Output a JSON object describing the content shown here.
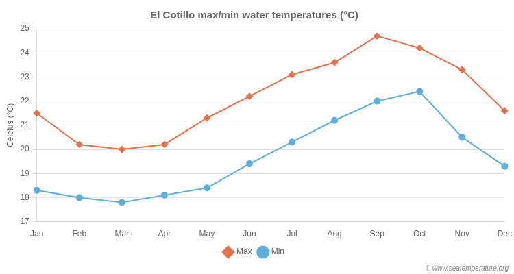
{
  "chart_data": {
    "type": "line",
    "title": "El Cotillo max/min water temperatures (°C)",
    "y_label": "Celcius (°C)",
    "categories": [
      "Jan",
      "Feb",
      "Mar",
      "Apr",
      "May",
      "Jun",
      "Jul",
      "Aug",
      "Sep",
      "Oct",
      "Nov",
      "Dec"
    ],
    "series": [
      {
        "name": "Max",
        "color": "#e8714a",
        "marker": "diamond",
        "values": [
          21.5,
          20.2,
          20.0,
          20.2,
          21.3,
          22.2,
          23.1,
          23.6,
          24.7,
          24.2,
          23.3,
          21.6
        ]
      },
      {
        "name": "Min",
        "color": "#5aaee0",
        "marker": "circle",
        "values": [
          18.3,
          18.0,
          17.8,
          18.1,
          18.4,
          19.4,
          20.3,
          21.2,
          22.0,
          22.4,
          20.5,
          19.3
        ]
      }
    ],
    "ylim": [
      17,
      25
    ],
    "yticks": [
      17,
      18,
      19,
      20,
      21,
      22,
      23,
      24,
      25
    ],
    "grid": true,
    "legend": "bottom",
    "annotation": "© www.seatemperature.org"
  }
}
